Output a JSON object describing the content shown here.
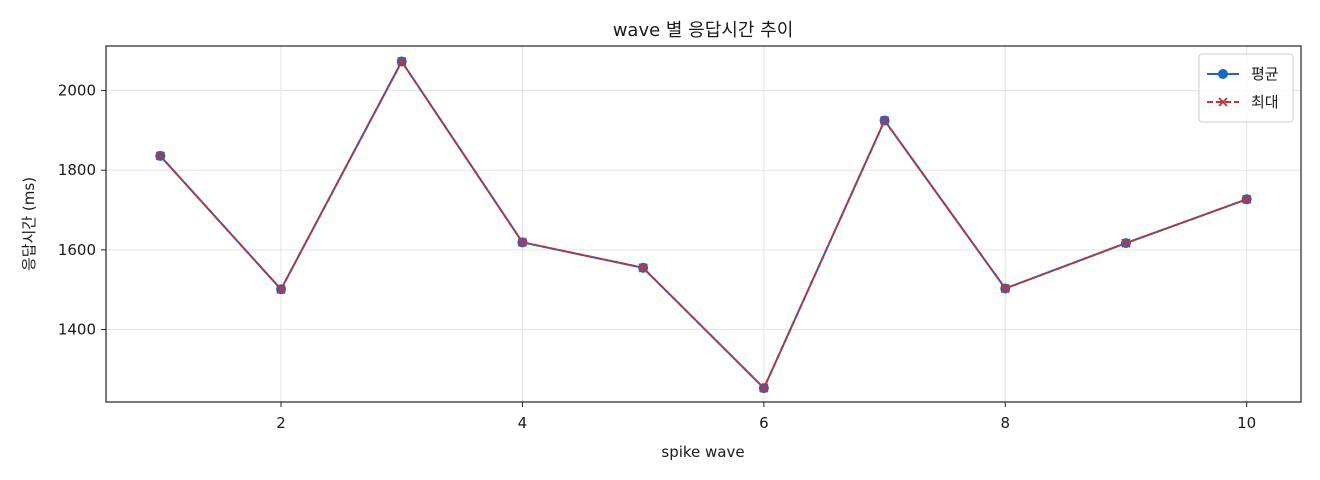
{
  "chart_data": {
    "type": "line",
    "title": "wave 별 응답시간 추이",
    "xlabel": "spike wave",
    "ylabel": "응답시간 (ms)",
    "x": [
      1,
      2,
      3,
      4,
      5,
      6,
      7,
      8,
      9,
      10
    ],
    "xlim": [
      0.55,
      10.45
    ],
    "ylim": [
      1218,
      2112
    ],
    "xticks": [
      2,
      4,
      6,
      8,
      10
    ],
    "yticks": [
      1400,
      1600,
      1800,
      2000
    ],
    "grid": true,
    "legend_position": "top-right",
    "series": [
      {
        "name": "평균",
        "values": [
          1836,
          1501,
          2073,
          1619,
          1555,
          1253,
          1925,
          1503,
          1617,
          1727
        ],
        "color": "#1f66c4",
        "marker": "circle",
        "line_style": "solid"
      },
      {
        "name": "최대",
        "values": [
          1836,
          1501,
          2073,
          1619,
          1555,
          1253,
          1925,
          1503,
          1617,
          1727
        ],
        "color": "#c83232",
        "marker": "x",
        "line_style": "dashed"
      }
    ]
  }
}
